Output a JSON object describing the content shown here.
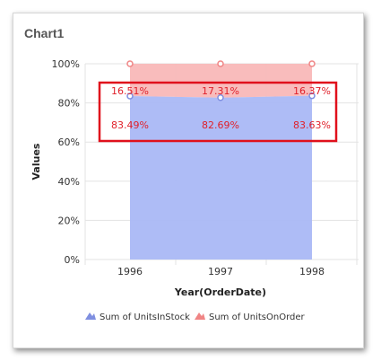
{
  "widget": {
    "title": "Chart1"
  },
  "colors": {
    "instock": "#aab8f6",
    "instock_marker": "#7f8fe0",
    "onorder": "#f9b8b8",
    "onorder_marker": "#f08585",
    "highlight": "#e0101c",
    "label": "#e0202a"
  },
  "chart_data": {
    "type": "area",
    "stacked": "100%",
    "categories": [
      "1996",
      "1997",
      "1998"
    ],
    "xlabel": "Year(OrderDate)",
    "ylabel": "Values",
    "ylim": [
      0,
      100
    ],
    "yticks": [
      "0%",
      "20%",
      "40%",
      "60%",
      "80%",
      "100%"
    ],
    "grid": true,
    "legend_position": "bottom",
    "series": [
      {
        "name": "Sum of UnitsInStock",
        "values": [
          83.49,
          82.69,
          83.63
        ],
        "labels": [
          "83.49%",
          "82.69%",
          "83.63%"
        ]
      },
      {
        "name": "Sum of UnitsOnOrder",
        "values": [
          16.51,
          17.31,
          16.37
        ],
        "labels": [
          "16.51%",
          "17.31%",
          "16.37%"
        ]
      }
    ]
  }
}
